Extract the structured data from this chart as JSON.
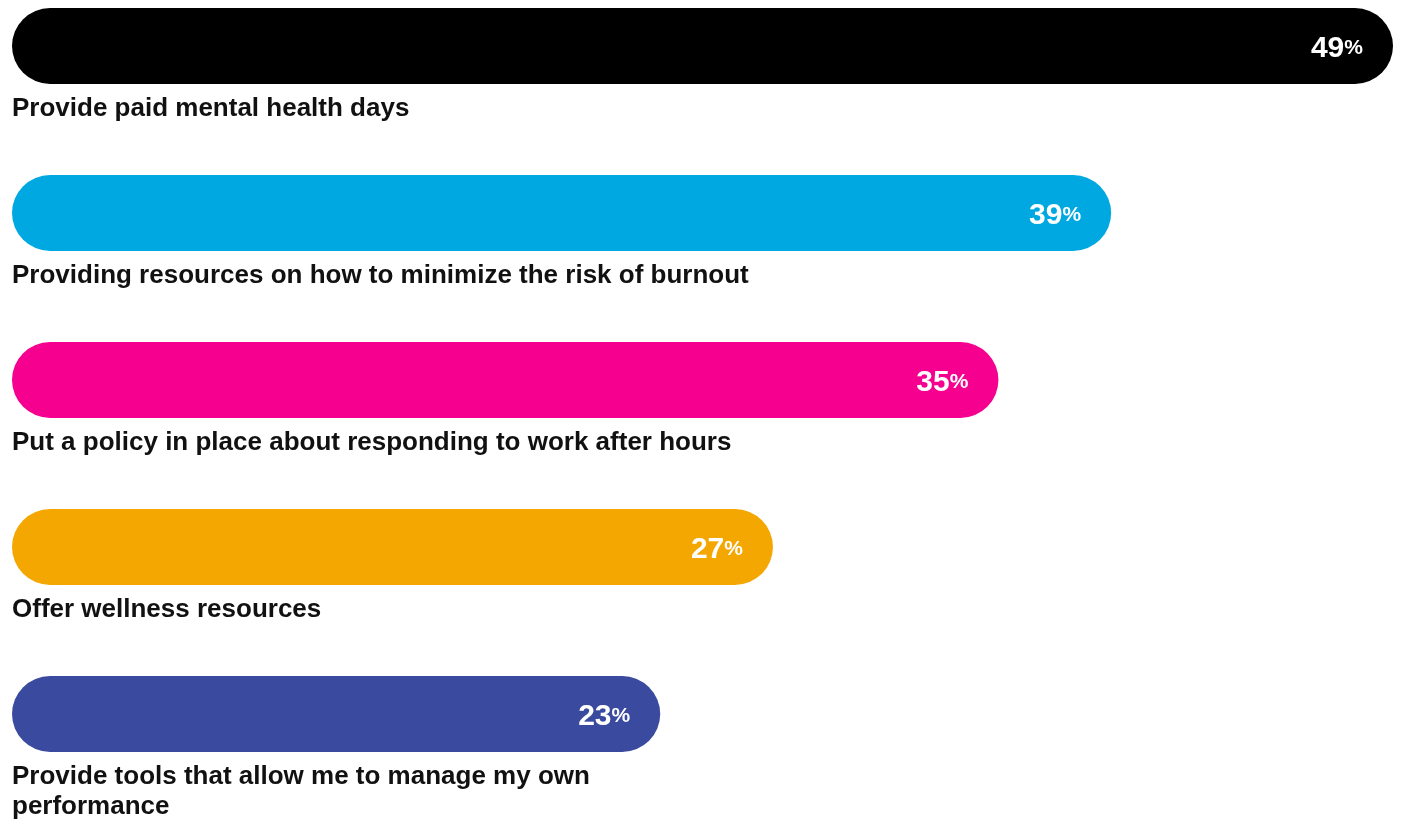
{
  "chart_data": {
    "type": "bar",
    "orientation": "horizontal",
    "categories": [
      "Provide paid mental health days",
      "Providing resources on how to minimize the risk of burnout",
      "Put a policy in place about responding to work after hours",
      "Offer wellness resources",
      "Provide tools that allow me to manage my own performance"
    ],
    "values": [
      49,
      39,
      35,
      27,
      23
    ],
    "colors": [
      "#000000",
      "#00a8e1",
      "#f5008f",
      "#f4a700",
      "#3a4a9e"
    ],
    "value_labels": [
      "49%",
      "39%",
      "35%",
      "27%",
      "23%"
    ]
  }
}
